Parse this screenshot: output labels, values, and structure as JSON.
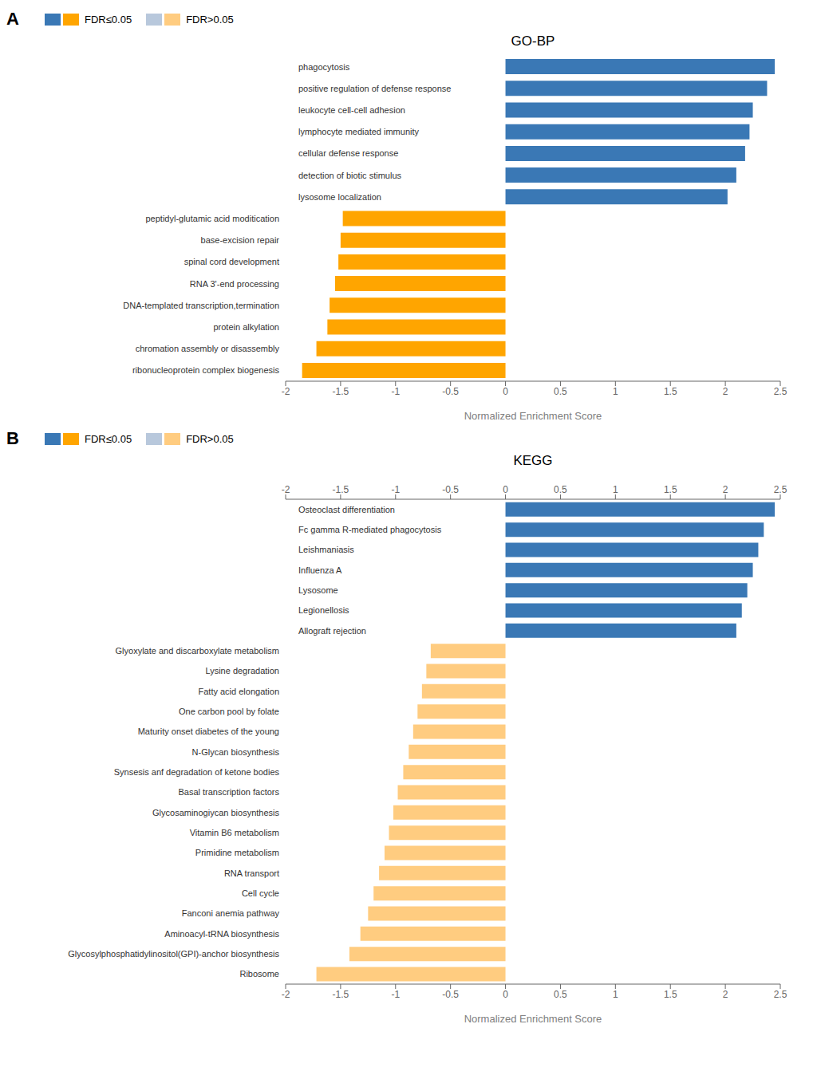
{
  "chart_data": [
    {
      "type": "bar",
      "orientation": "horizontal",
      "title": "GO-BP",
      "panel_label": "A",
      "categories": [
        "ribonucleoprotein complex biogenesis",
        "chromation assembly or disassembly",
        "protein alkylation",
        "DNA-templated transcription,termination",
        "RNA 3'-end processing",
        "spinal cord development",
        "base-excision repair",
        "peptidyl-glutamic acid moditication",
        "lysosome localization",
        "detection of biotic stimulus",
        "cellular defense response",
        "lymphocyte mediated immunity",
        "leukocyte cell-cell adhesion",
        "positive regulation of defense response",
        "phagocytosis"
      ],
      "values": [
        -1.85,
        -1.72,
        -1.62,
        -1.6,
        -1.55,
        -1.52,
        -1.5,
        -1.48,
        2.02,
        2.1,
        2.18,
        2.22,
        2.25,
        2.38,
        2.45
      ],
      "colors": [
        "#FFA500",
        "#FFA500",
        "#FFA500",
        "#FFA500",
        "#FFA500",
        "#FFA500",
        "#FFA500",
        "#FFA500",
        "#3A78B5",
        "#3A78B5",
        "#3A78B5",
        "#3A78B5",
        "#3A78B5",
        "#3A78B5",
        "#3A78B5"
      ],
      "xlabel": "Normalized Enrichment Score",
      "xlim": [
        -2.0,
        2.5
      ],
      "xticks": [
        -2,
        -1.5,
        -1,
        -0.5,
        0,
        0.5,
        1,
        1.5,
        2,
        2.5
      ],
      "legend_entries": [
        {
          "name": "FDR≤0.05",
          "colors": [
            "#3A78B5",
            "#FFA500"
          ]
        },
        {
          "name": "FDR>0.05",
          "colors": [
            "#B8C8DC",
            "#FFCC80"
          ]
        }
      ]
    },
    {
      "type": "bar",
      "orientation": "horizontal",
      "title": "KEGG",
      "panel_label": "B",
      "categories": [
        "Ribosome",
        "Glycosylphosphatidylinositol(GPI)-anchor biosynthesis",
        "Aminoacyl-tRNA biosynthesis",
        "Fanconi anemia pathway",
        "Cell cycle",
        "RNA transport",
        "Primidine metabolism",
        "Vitamin B6 metabolism",
        "Glycosaminogiycan biosynthesis",
        "Basal transcription factors",
        "Synsesis anf degradation of ketone bodies",
        "N-Glycan biosynthesis",
        "Maturity onset diabetes of the young",
        "One carbon pool by folate",
        "Fatty acid elongation",
        "Lysine degradation",
        "Glyoxylate and discarboxylate metabolism",
        "Allograft rejection",
        "Legionellosis",
        "Lysosome",
        "Influenza A",
        "Leishmaniasis",
        "Fc gamma R-mediated phagocytosis",
        "Osteoclast differentiation"
      ],
      "values": [
        -1.72,
        -1.42,
        -1.32,
        -1.25,
        -1.2,
        -1.15,
        -1.1,
        -1.06,
        -1.02,
        -0.98,
        -0.93,
        -0.88,
        -0.84,
        -0.8,
        -0.76,
        -0.72,
        -0.68,
        2.1,
        2.15,
        2.2,
        2.25,
        2.3,
        2.35,
        2.45
      ],
      "colors": [
        "#FFCC80",
        "#FFCC80",
        "#FFCC80",
        "#FFCC80",
        "#FFCC80",
        "#FFCC80",
        "#FFCC80",
        "#FFCC80",
        "#FFCC80",
        "#FFCC80",
        "#FFCC80",
        "#FFCC80",
        "#FFCC80",
        "#FFCC80",
        "#FFCC80",
        "#FFCC80",
        "#FFCC80",
        "#3A78B5",
        "#3A78B5",
        "#3A78B5",
        "#3A78B5",
        "#3A78B5",
        "#3A78B5",
        "#3A78B5"
      ],
      "xlabel": "Normalized Enrichment Score",
      "xlim": [
        -2.0,
        2.5
      ],
      "xticks": [
        -2,
        -1.5,
        -1,
        -0.5,
        0,
        0.5,
        1,
        1.5,
        2,
        2.5
      ],
      "x2lim": [
        -2.0,
        2.5
      ],
      "x2ticks": [
        -2,
        -1.5,
        -1,
        -0.5,
        0,
        0.5,
        1,
        1.5,
        2,
        2.5
      ],
      "legend_entries": [
        {
          "name": "FDR≤0.05",
          "colors": [
            "#3A78B5",
            "#FFA500"
          ]
        },
        {
          "name": "FDR>0.05",
          "colors": [
            "#B8C8DC",
            "#FFCC80"
          ]
        }
      ]
    }
  ]
}
